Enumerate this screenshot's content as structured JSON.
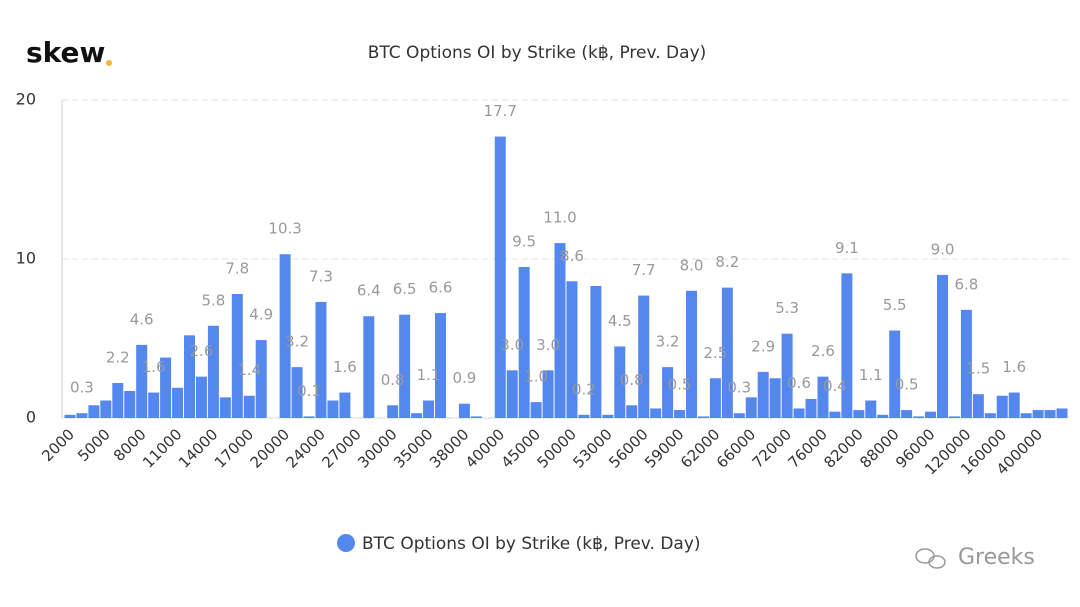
{
  "brand": "skew",
  "watermark": "Greeks",
  "chart_data": {
    "type": "bar",
    "title": "BTC Options OI by Strike (k฿, Prev. Day)",
    "categories": [
      "2000",
      null,
      null,
      "5000",
      null,
      null,
      "8000",
      null,
      null,
      "11000",
      null,
      null,
      "14000",
      null,
      null,
      "17000",
      null,
      null,
      "20000",
      null,
      null,
      "24000",
      null,
      null,
      "27000",
      null,
      null,
      "30000",
      null,
      null,
      "35000",
      null,
      null,
      "38000",
      null,
      null,
      "40000",
      null,
      null,
      "45000",
      null,
      null,
      "50000",
      null,
      null,
      "53000",
      null,
      null,
      "56000",
      null,
      null,
      "59000",
      null,
      null,
      "62000",
      null,
      null,
      "66000",
      null,
      null,
      "72000",
      null,
      null,
      "76000",
      null,
      null,
      "82000",
      null,
      null,
      "88000",
      null,
      null,
      "96000",
      null,
      null,
      "120000",
      null,
      null,
      "160000",
      null,
      null,
      "400000",
      null,
      null
    ],
    "series": [
      {
        "name": "BTC Options OI by Strike (k฿, Prev. Day)",
        "color": "#5588ee",
        "values": [
          0.2,
          0.3,
          0.8,
          1.1,
          2.2,
          1.7,
          4.6,
          1.6,
          3.8,
          1.9,
          5.2,
          2.6,
          5.8,
          1.3,
          7.8,
          1.4,
          4.9,
          0,
          10.3,
          3.2,
          0.1,
          7.3,
          1.1,
          1.6,
          0,
          6.4,
          0,
          0.8,
          6.5,
          0.3,
          1.1,
          6.6,
          0,
          0.9,
          0.1,
          0,
          17.7,
          3.0,
          9.5,
          1.0,
          3.0,
          11.0,
          8.6,
          0.2,
          8.3,
          0.2,
          4.5,
          0.8,
          7.7,
          0.6,
          3.2,
          0.5,
          8.0,
          0.1,
          2.5,
          8.2,
          0.3,
          1.3,
          2.9,
          2.5,
          5.3,
          0.6,
          1.2,
          2.6,
          0.4,
          9.1,
          0.5,
          1.1,
          0.2,
          5.5,
          0.5,
          0.1,
          0.4,
          9.0,
          0.1,
          6.8,
          1.5,
          0.3,
          1.4,
          1.6,
          0.3,
          0.5,
          0.5,
          0.6
        ],
        "value_labels": [
          null,
          "0.3",
          null,
          null,
          "2.2",
          null,
          "4.6",
          "1.6",
          null,
          null,
          null,
          "2.6",
          "5.8",
          null,
          "7.8",
          "1.4",
          "4.9",
          null,
          "10.3",
          "3.2",
          "0.1",
          "7.3",
          null,
          "1.6",
          null,
          "6.4",
          null,
          "0.8",
          "6.5",
          null,
          "1.1",
          "6.6",
          null,
          "0.9",
          null,
          null,
          "17.7",
          "3.0",
          "9.5",
          "1.0",
          "3.0",
          "11.0",
          "8.6",
          "0.2",
          null,
          null,
          "4.5",
          "0.8",
          "7.7",
          null,
          "3.2",
          "0.5",
          "8.0",
          null,
          "2.5",
          "8.2",
          "0.3",
          null,
          "2.9",
          null,
          "5.3",
          "0.6",
          null,
          "2.6",
          "0.4",
          "9.1",
          null,
          "1.1",
          null,
          "5.5",
          "0.5",
          null,
          null,
          "9.0",
          null,
          "6.8",
          "1.5",
          null,
          null,
          "1.6",
          null,
          null,
          null,
          null
        ]
      }
    ],
    "ylim": [
      0,
      20
    ],
    "yticks": [
      0,
      10,
      20
    ],
    "grid": true,
    "legend": "bottom"
  }
}
